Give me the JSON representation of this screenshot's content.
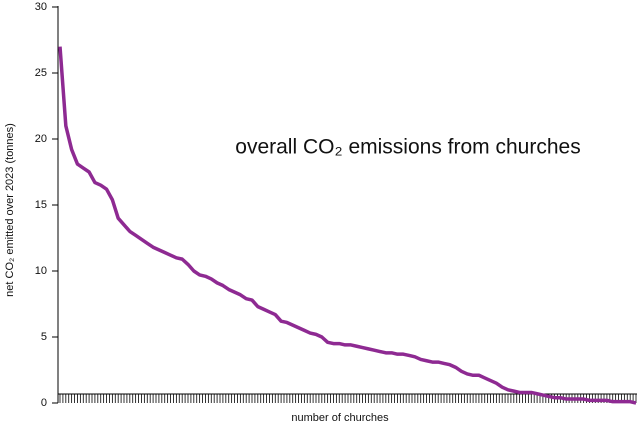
{
  "chart_data": {
    "type": "line",
    "title": "overall CO₂ emissions from churches",
    "x_label": "number of churches",
    "y_label": "net CO₂ emitted over 2023 (tonnes)",
    "color": "#8e2a92",
    "categories": [
      null,
      null,
      null,
      null,
      null,
      null,
      null,
      null,
      null,
      null,
      null,
      null,
      null,
      null,
      null,
      null,
      null,
      null,
      null,
      null,
      null,
      null,
      null,
      null,
      null,
      null,
      null,
      null,
      null,
      null,
      null,
      null,
      null,
      null,
      null,
      null,
      null,
      null,
      null,
      null,
      null,
      null,
      null,
      null,
      null,
      null,
      null,
      null,
      null,
      null,
      null,
      null,
      null,
      null,
      null,
      null,
      null,
      null,
      null,
      null,
      null,
      null,
      null,
      null,
      null,
      null,
      null,
      null,
      null,
      null,
      null,
      null,
      null,
      null,
      null,
      null,
      null,
      null,
      null,
      null,
      null,
      null,
      null,
      null,
      null,
      null,
      null,
      null,
      null,
      null,
      null,
      null,
      null,
      null,
      null,
      null,
      null,
      null,
      null,
      null
    ],
    "values": [
      27,
      21,
      19.2,
      18.1,
      17.8,
      17.5,
      16.7,
      16.5,
      16.2,
      15.4,
      14,
      13.5,
      13,
      12.7,
      12.4,
      12.1,
      11.8,
      11.6,
      11.4,
      11.2,
      11,
      10.9,
      10.5,
      10,
      9.7,
      9.6,
      9.4,
      9.1,
      8.9,
      8.6,
      8.4,
      8.2,
      7.9,
      7.8,
      7.3,
      7.1,
      6.9,
      6.7,
      6.2,
      6.1,
      5.9,
      5.7,
      5.5,
      5.3,
      5.2,
      5,
      4.6,
      4.5,
      4.5,
      4.4,
      4.4,
      4.3,
      4.2,
      4.1,
      4,
      3.9,
      3.8,
      3.8,
      3.7,
      3.7,
      3.6,
      3.5,
      3.3,
      3.2,
      3.1,
      3.1,
      3,
      2.9,
      2.7,
      2.4,
      2.2,
      2.1,
      2.1,
      1.9,
      1.7,
      1.5,
      1.2,
      1,
      0.9,
      0.8,
      0.8,
      0.8,
      0.7,
      0.6,
      0.5,
      0.4,
      0.4,
      0.3,
      0.3,
      0.3,
      0.3,
      0.2,
      0.2,
      0.2,
      0.2,
      0.1,
      0.1,
      0.1,
      0.1,
      0
    ],
    "ylim": [
      0,
      30
    ],
    "yticks": [
      0,
      5,
      10,
      15,
      20,
      25,
      30
    ]
  }
}
